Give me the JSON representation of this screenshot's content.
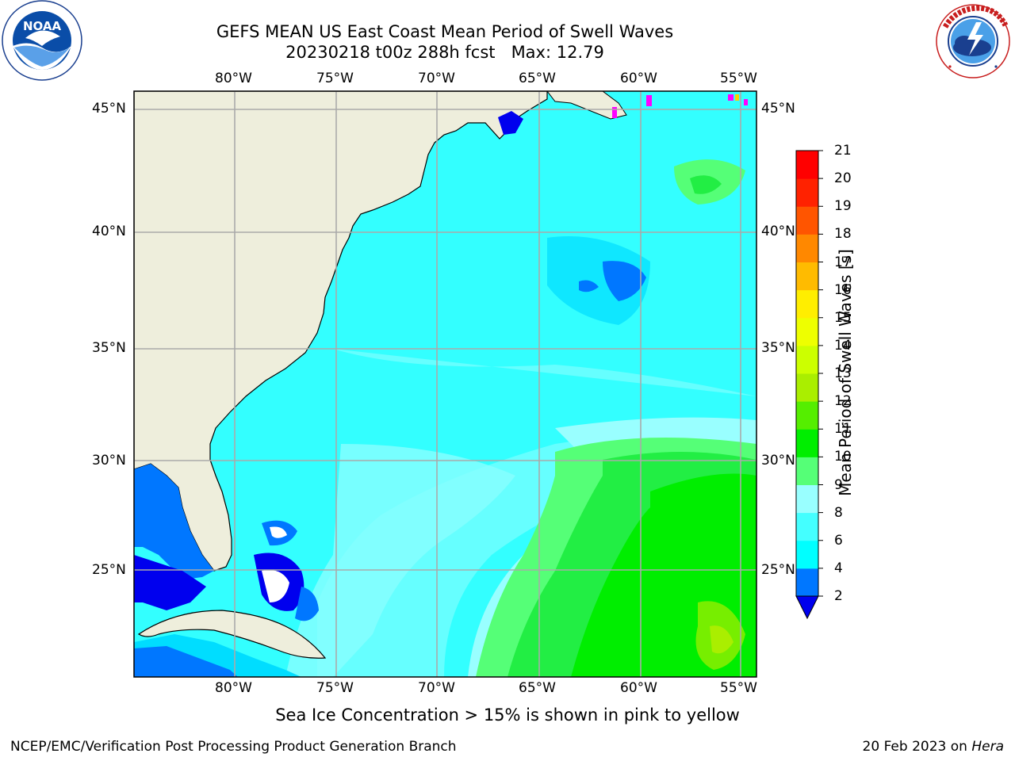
{
  "title": {
    "line1": "GEFS MEAN US East Coast Mean Period of Swell Waves",
    "line2_run": "20230218 t00z 288h fcst",
    "line2_max": "Max: 12.79"
  },
  "logos": {
    "left": {
      "icon": "noaa-logo",
      "text": "NOAA",
      "ring_text": "NATIONAL OCEANIC AND ATMOSPHERIC ADMINISTRATION · U.S. DEPARTMENT OF COMMERCE"
    },
    "right": {
      "icon": "nws-logo",
      "ring_text": "NATIONAL WEATHER SERVICE"
    }
  },
  "map": {
    "lon_labels": [
      "80°W",
      "75°W",
      "70°W",
      "65°W",
      "60°W",
      "55°W"
    ],
    "lat_labels": [
      "45°N",
      "40°N",
      "35°N",
      "30°N",
      "25°N"
    ],
    "colors": {
      "land": "#eeeedc",
      "ocean_base": "#33ffff",
      "grid": "#aaaaaa"
    }
  },
  "colorbar": {
    "label": "Mean Period of Swell Waves [s]",
    "ticks": [
      "2",
      "4",
      "6",
      "8",
      "9",
      "10",
      "11",
      "12",
      "13",
      "14",
      "15",
      "16",
      "17",
      "18",
      "19",
      "20",
      "21"
    ],
    "colors": [
      "#0000ee",
      "#0077ff",
      "#00ffff",
      "#44ffff",
      "#99ffff",
      "#55ff77",
      "#00ee00",
      "#55ee00",
      "#aaee00",
      "#ccff00",
      "#eeff00",
      "#ffee00",
      "#ffbb00",
      "#ff8800",
      "#ff5500",
      "#ff2200",
      "#ff0000"
    ],
    "under_color": "#0000ee"
  },
  "note": "Sea Ice Concentration > 15% is shown in pink to yellow",
  "footer": {
    "left": "NCEP/EMC/Verification Post Processing Product Generation Branch",
    "right_date": "20 Feb 2023 on ",
    "right_machine": "Hera"
  }
}
